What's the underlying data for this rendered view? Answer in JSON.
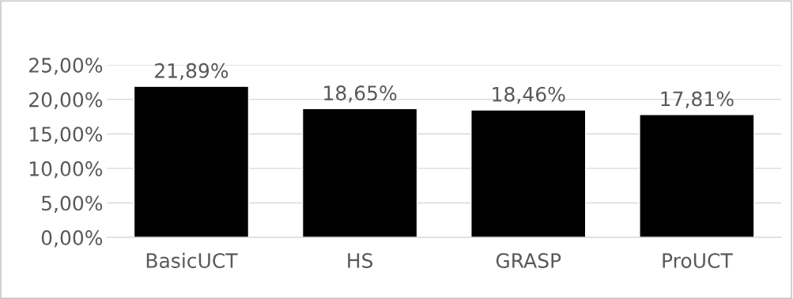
{
  "chart_data": {
    "type": "bar",
    "categories": [
      "BasicUCT",
      "HS",
      "GRASP",
      "ProUCT"
    ],
    "values": [
      21.89,
      18.65,
      18.46,
      17.81
    ],
    "value_labels": [
      "21,89%",
      "18,65%",
      "18,46%",
      "17,81%"
    ],
    "color": "#000000",
    "ylim": [
      0,
      25
    ],
    "yticks": [
      {
        "value": 0,
        "label": "0,00%"
      },
      {
        "value": 5,
        "label": "5,00%"
      },
      {
        "value": 10,
        "label": "10,00%"
      },
      {
        "value": 15,
        "label": "15,00%"
      },
      {
        "value": 20,
        "label": "20,00%"
      },
      {
        "value": 25,
        "label": "25,00%"
      }
    ],
    "grid": "y",
    "legend": false
  }
}
